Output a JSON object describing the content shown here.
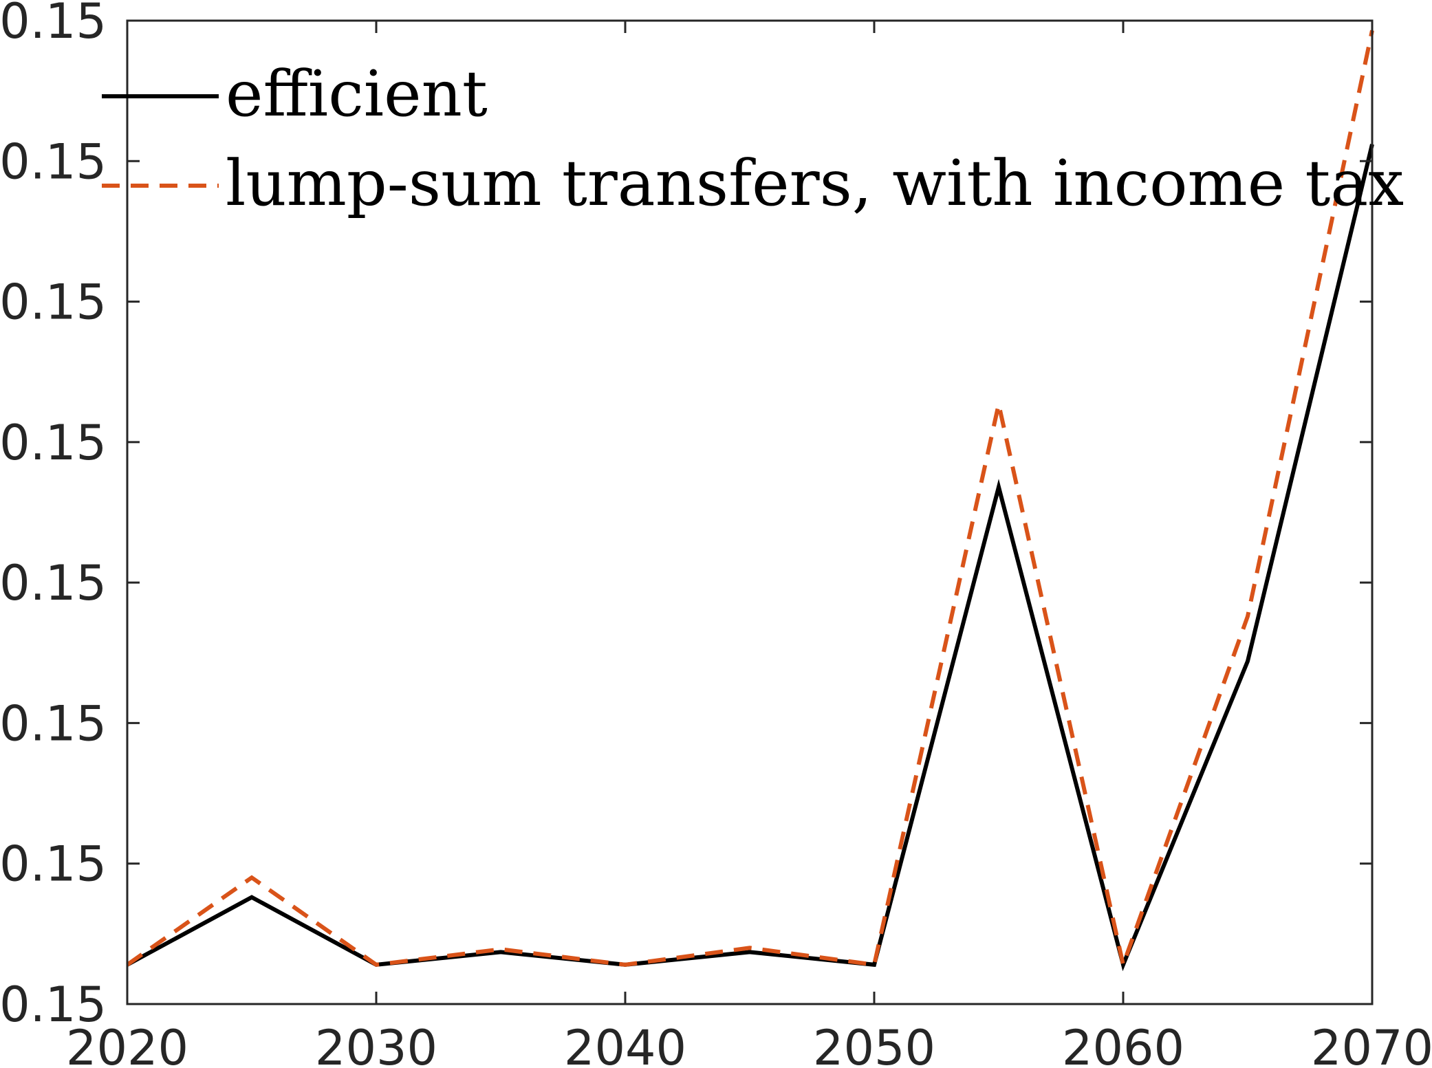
{
  "chart_data": {
    "type": "line",
    "title": "",
    "xlabel": "",
    "ylabel": "",
    "x": [
      2020,
      2025,
      2030,
      2035,
      2040,
      2045,
      2050,
      2055,
      2060,
      2065,
      2070
    ],
    "xlim": [
      2020,
      2070
    ],
    "ylim": [
      0.15,
      0.157
    ],
    "x_ticks": [
      "2020",
      "2030",
      "2040",
      "2050",
      "2060",
      "2070"
    ],
    "y_ticks": [
      "0.15",
      "0.15",
      "0.15",
      "0.15",
      "0.15",
      "0.15",
      "0.15",
      "0.15"
    ],
    "grid": false,
    "legend_position": "top-left",
    "series": [
      {
        "name": "efficient",
        "color": "#000000",
        "style": "solid",
        "values": [
          0.15028,
          0.15076,
          0.15028,
          0.15037,
          0.15028,
          0.15037,
          0.15028,
          0.15368,
          0.15028,
          0.15244,
          0.15612
        ]
      },
      {
        "name": "lump-sum transfers, with income tax",
        "color": "#D95319",
        "style": "dashed",
        "values": [
          0.15028,
          0.1509,
          0.15028,
          0.15039,
          0.15028,
          0.1504,
          0.15028,
          0.15427,
          0.15028,
          0.15276,
          0.15693
        ]
      }
    ]
  }
}
